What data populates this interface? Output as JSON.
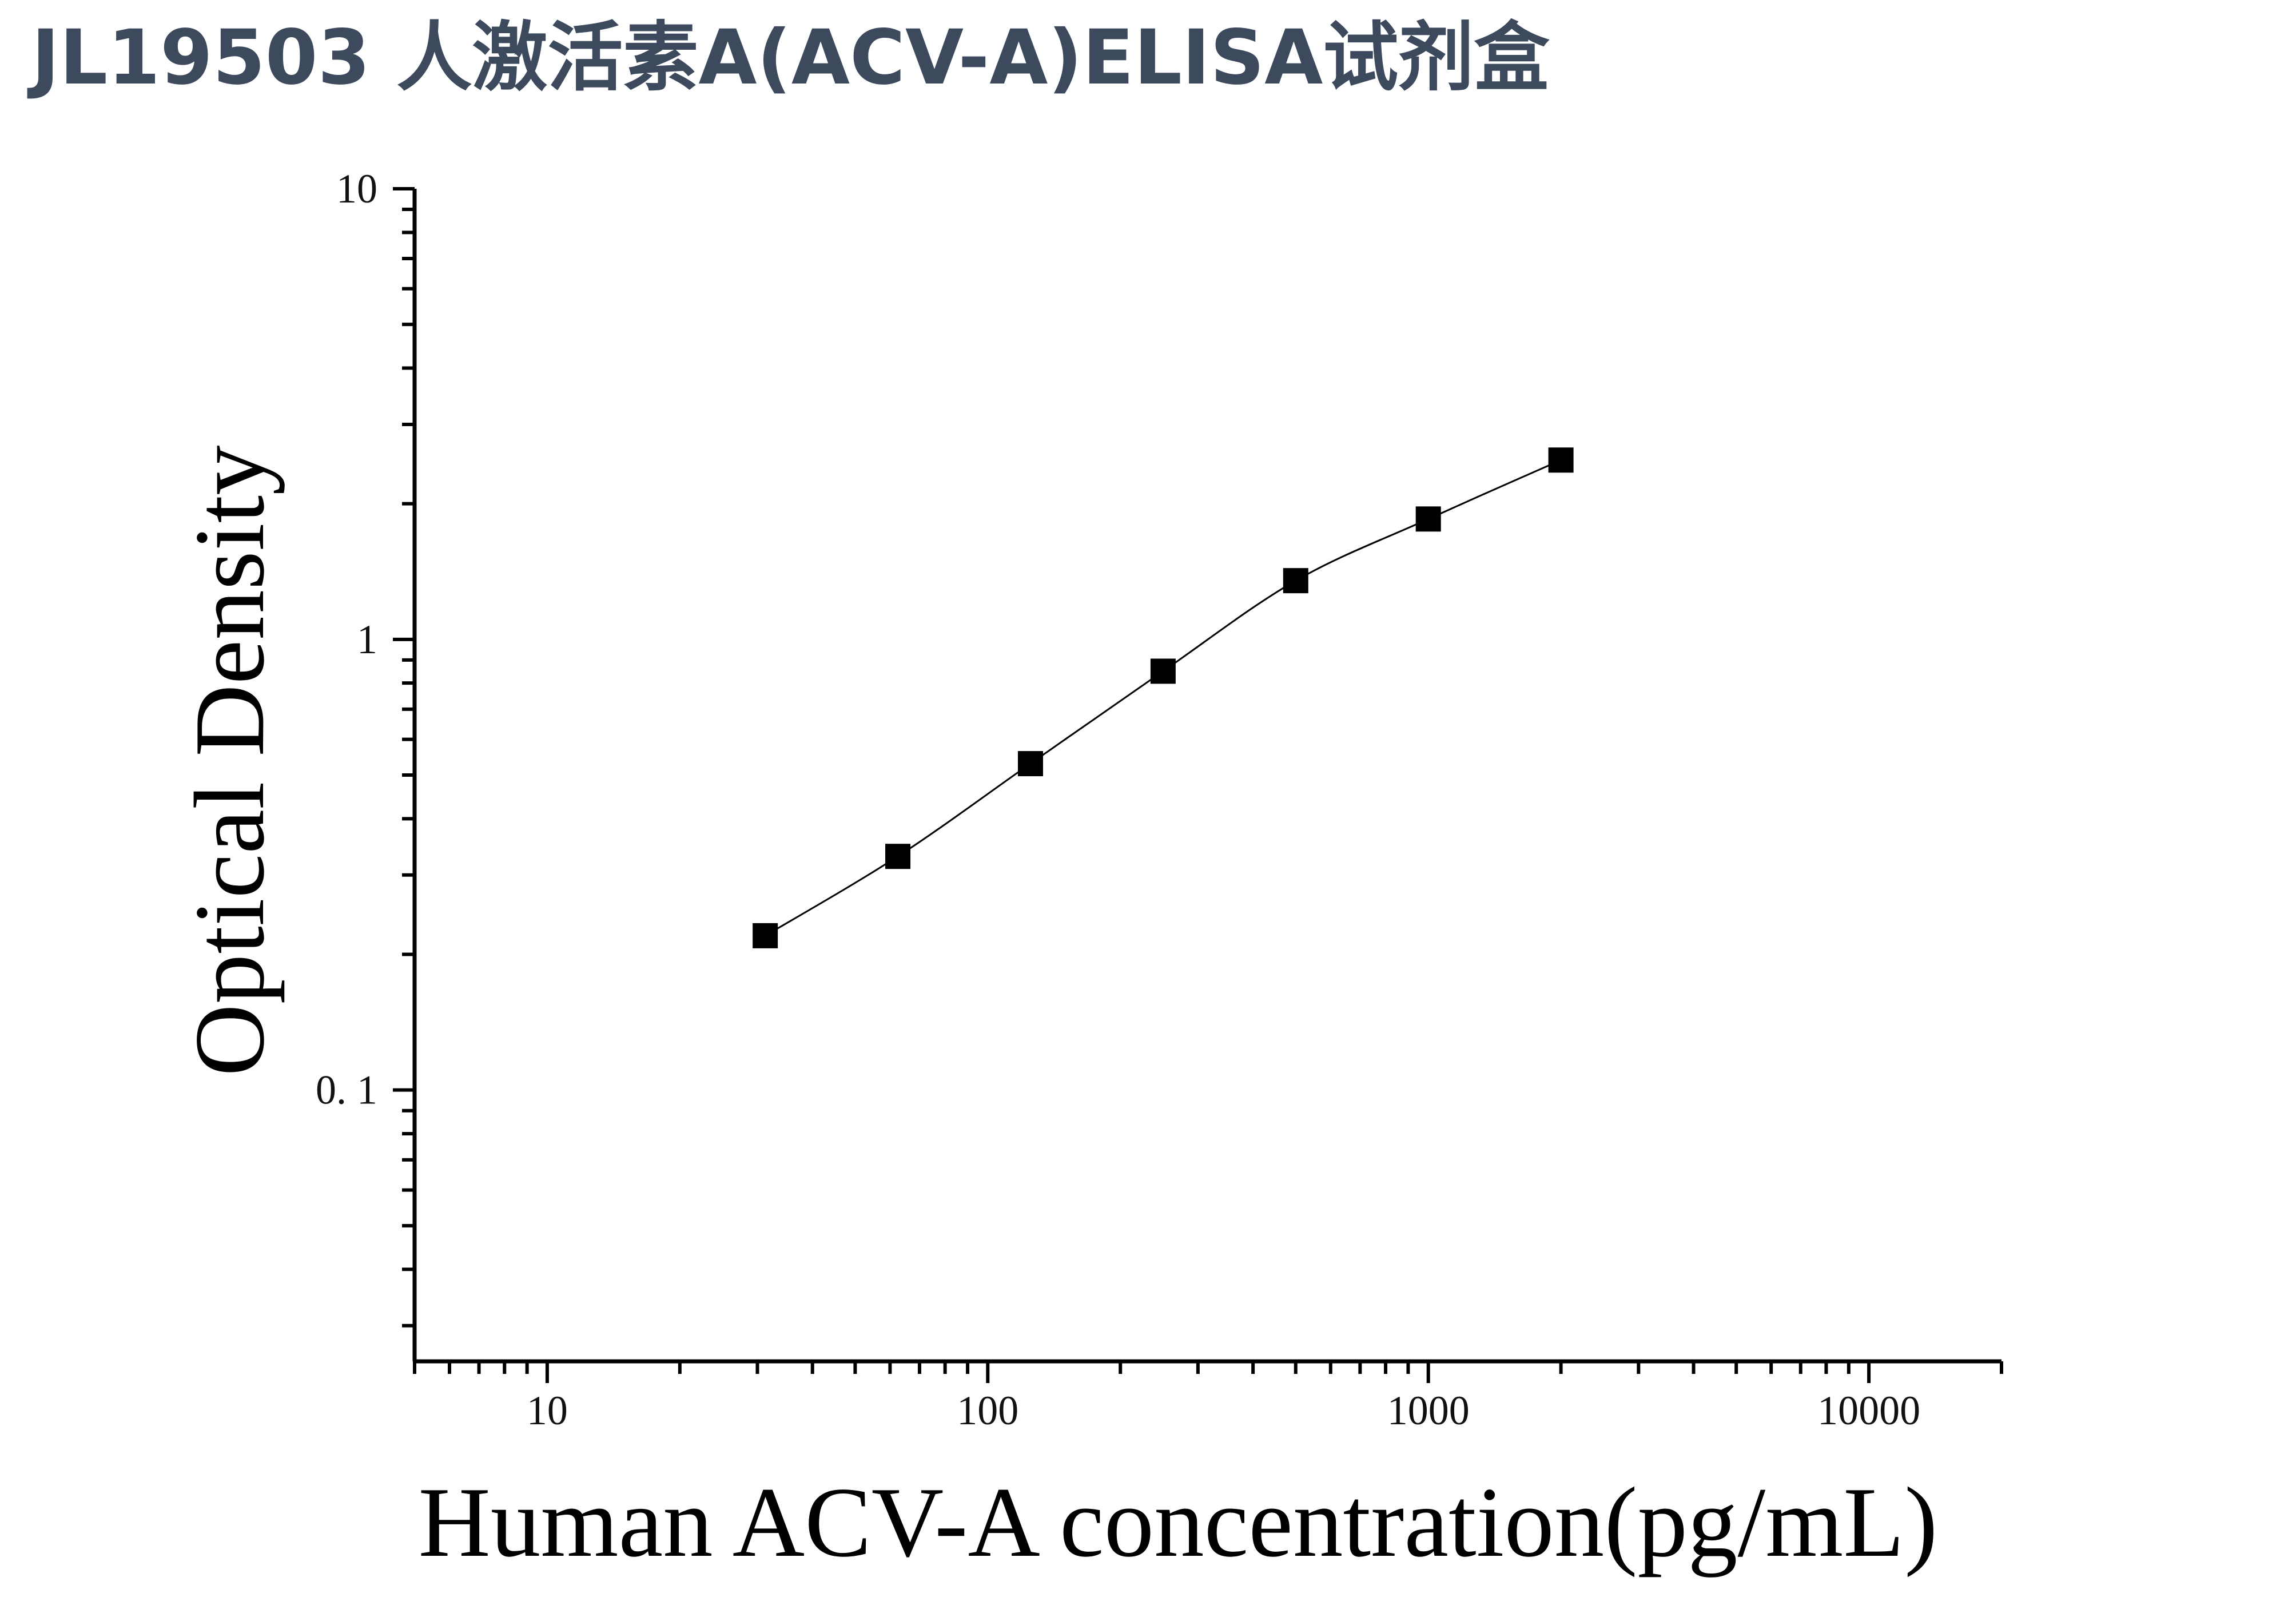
{
  "title": "JL19503 人激活素A(ACV-A)ELISA试剂盒",
  "chart_data": {
    "type": "scatter",
    "title": "JL19503 人激活素A(ACV-A)ELISA试剂盒",
    "xlabel": "Human ACV-A concentration(pg/mL)",
    "ylabel": "Optical Density",
    "x_scale": "log",
    "y_scale": "log",
    "xlim": [
      5,
      20000
    ],
    "ylim": [
      0.025,
      10
    ],
    "x_ticks": [
      {
        "value": 10,
        "label": "10"
      },
      {
        "value": 100,
        "label": "100"
      },
      {
        "value": 1000,
        "label": "1000"
      },
      {
        "value": 10000,
        "label": "10000"
      }
    ],
    "y_ticks": [
      {
        "value": 0.1,
        "label": "0. 1"
      },
      {
        "value": 1,
        "label": "1"
      },
      {
        "value": 10,
        "label": "10"
      }
    ],
    "grid": false,
    "series": [
      {
        "marker": "square",
        "color": "#000000",
        "fit_line": true,
        "x": [
          31.25,
          62.5,
          125,
          250,
          500,
          1000,
          2000
        ],
        "y": [
          0.22,
          0.33,
          0.53,
          0.85,
          1.35,
          1.85,
          2.5
        ]
      }
    ]
  }
}
